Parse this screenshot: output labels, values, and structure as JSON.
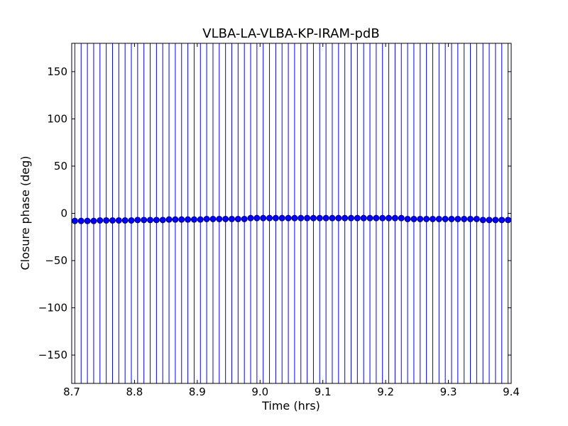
{
  "chart_data": {
    "type": "errorbar",
    "title": "VLBA-LA-VLBA-KP-IRAM-pdB",
    "xlabel": "Time (hrs)",
    "ylabel": "Closure phase (deg)",
    "xlim": [
      8.7,
      9.4
    ],
    "ylim": [
      -180,
      180
    ],
    "xticks": [
      8.7,
      8.8,
      8.9,
      {
        "value": 9,
        "label": "9.0"
      },
      9.1,
      9.2,
      9.3,
      9.4
    ],
    "yticks": [
      {
        "value": -150,
        "label": "−150"
      },
      {
        "value": -100,
        "label": "−100"
      },
      {
        "value": -50,
        "label": "−50"
      },
      0,
      50,
      100,
      150
    ],
    "color": "#0000ff",
    "yerr": 200,
    "x": [
      8.705,
      8.715,
      8.725,
      8.735,
      8.745,
      8.755,
      8.765,
      8.775,
      8.785,
      8.795,
      8.805,
      8.815,
      8.825,
      8.835,
      8.845,
      8.855,
      8.865,
      8.875,
      8.885,
      8.895,
      8.905,
      8.915,
      8.925,
      8.935,
      8.945,
      8.955,
      8.965,
      8.975,
      8.985,
      8.995,
      9.005,
      9.015,
      9.025,
      9.035,
      9.045,
      9.055,
      9.065,
      9.075,
      9.085,
      9.095,
      9.105,
      9.115,
      9.125,
      9.135,
      9.145,
      9.155,
      9.165,
      9.175,
      9.185,
      9.195,
      9.205,
      9.215,
      9.225,
      9.235,
      9.245,
      9.255,
      9.265,
      9.275,
      9.285,
      9.295,
      9.305,
      9.315,
      9.325,
      9.335,
      9.345,
      9.355,
      9.365,
      9.375,
      9.385,
      9.395
    ],
    "values": [
      -8,
      -8,
      -8,
      -8,
      -7.5,
      -7.5,
      -7.5,
      -7.5,
      -7.5,
      -7.5,
      -7,
      -7,
      -7,
      -7,
      -7,
      -6.5,
      -6.5,
      -6.5,
      -6.5,
      -6.5,
      -6.5,
      -6,
      -6,
      -6,
      -6,
      -6,
      -6,
      -6,
      -5,
      -5,
      -5,
      -5,
      -5,
      -5,
      -5,
      -5,
      -5,
      -5,
      -5,
      -5,
      -5,
      -5,
      -5,
      -5,
      -5,
      -5,
      -5,
      -5,
      -5,
      -5,
      -5,
      -5,
      -5,
      -6,
      -6,
      -6,
      -6,
      -6,
      -6,
      -6,
      -6,
      -6,
      -6,
      -6,
      -6,
      -7,
      -7,
      -7,
      -7,
      -7
    ]
  }
}
